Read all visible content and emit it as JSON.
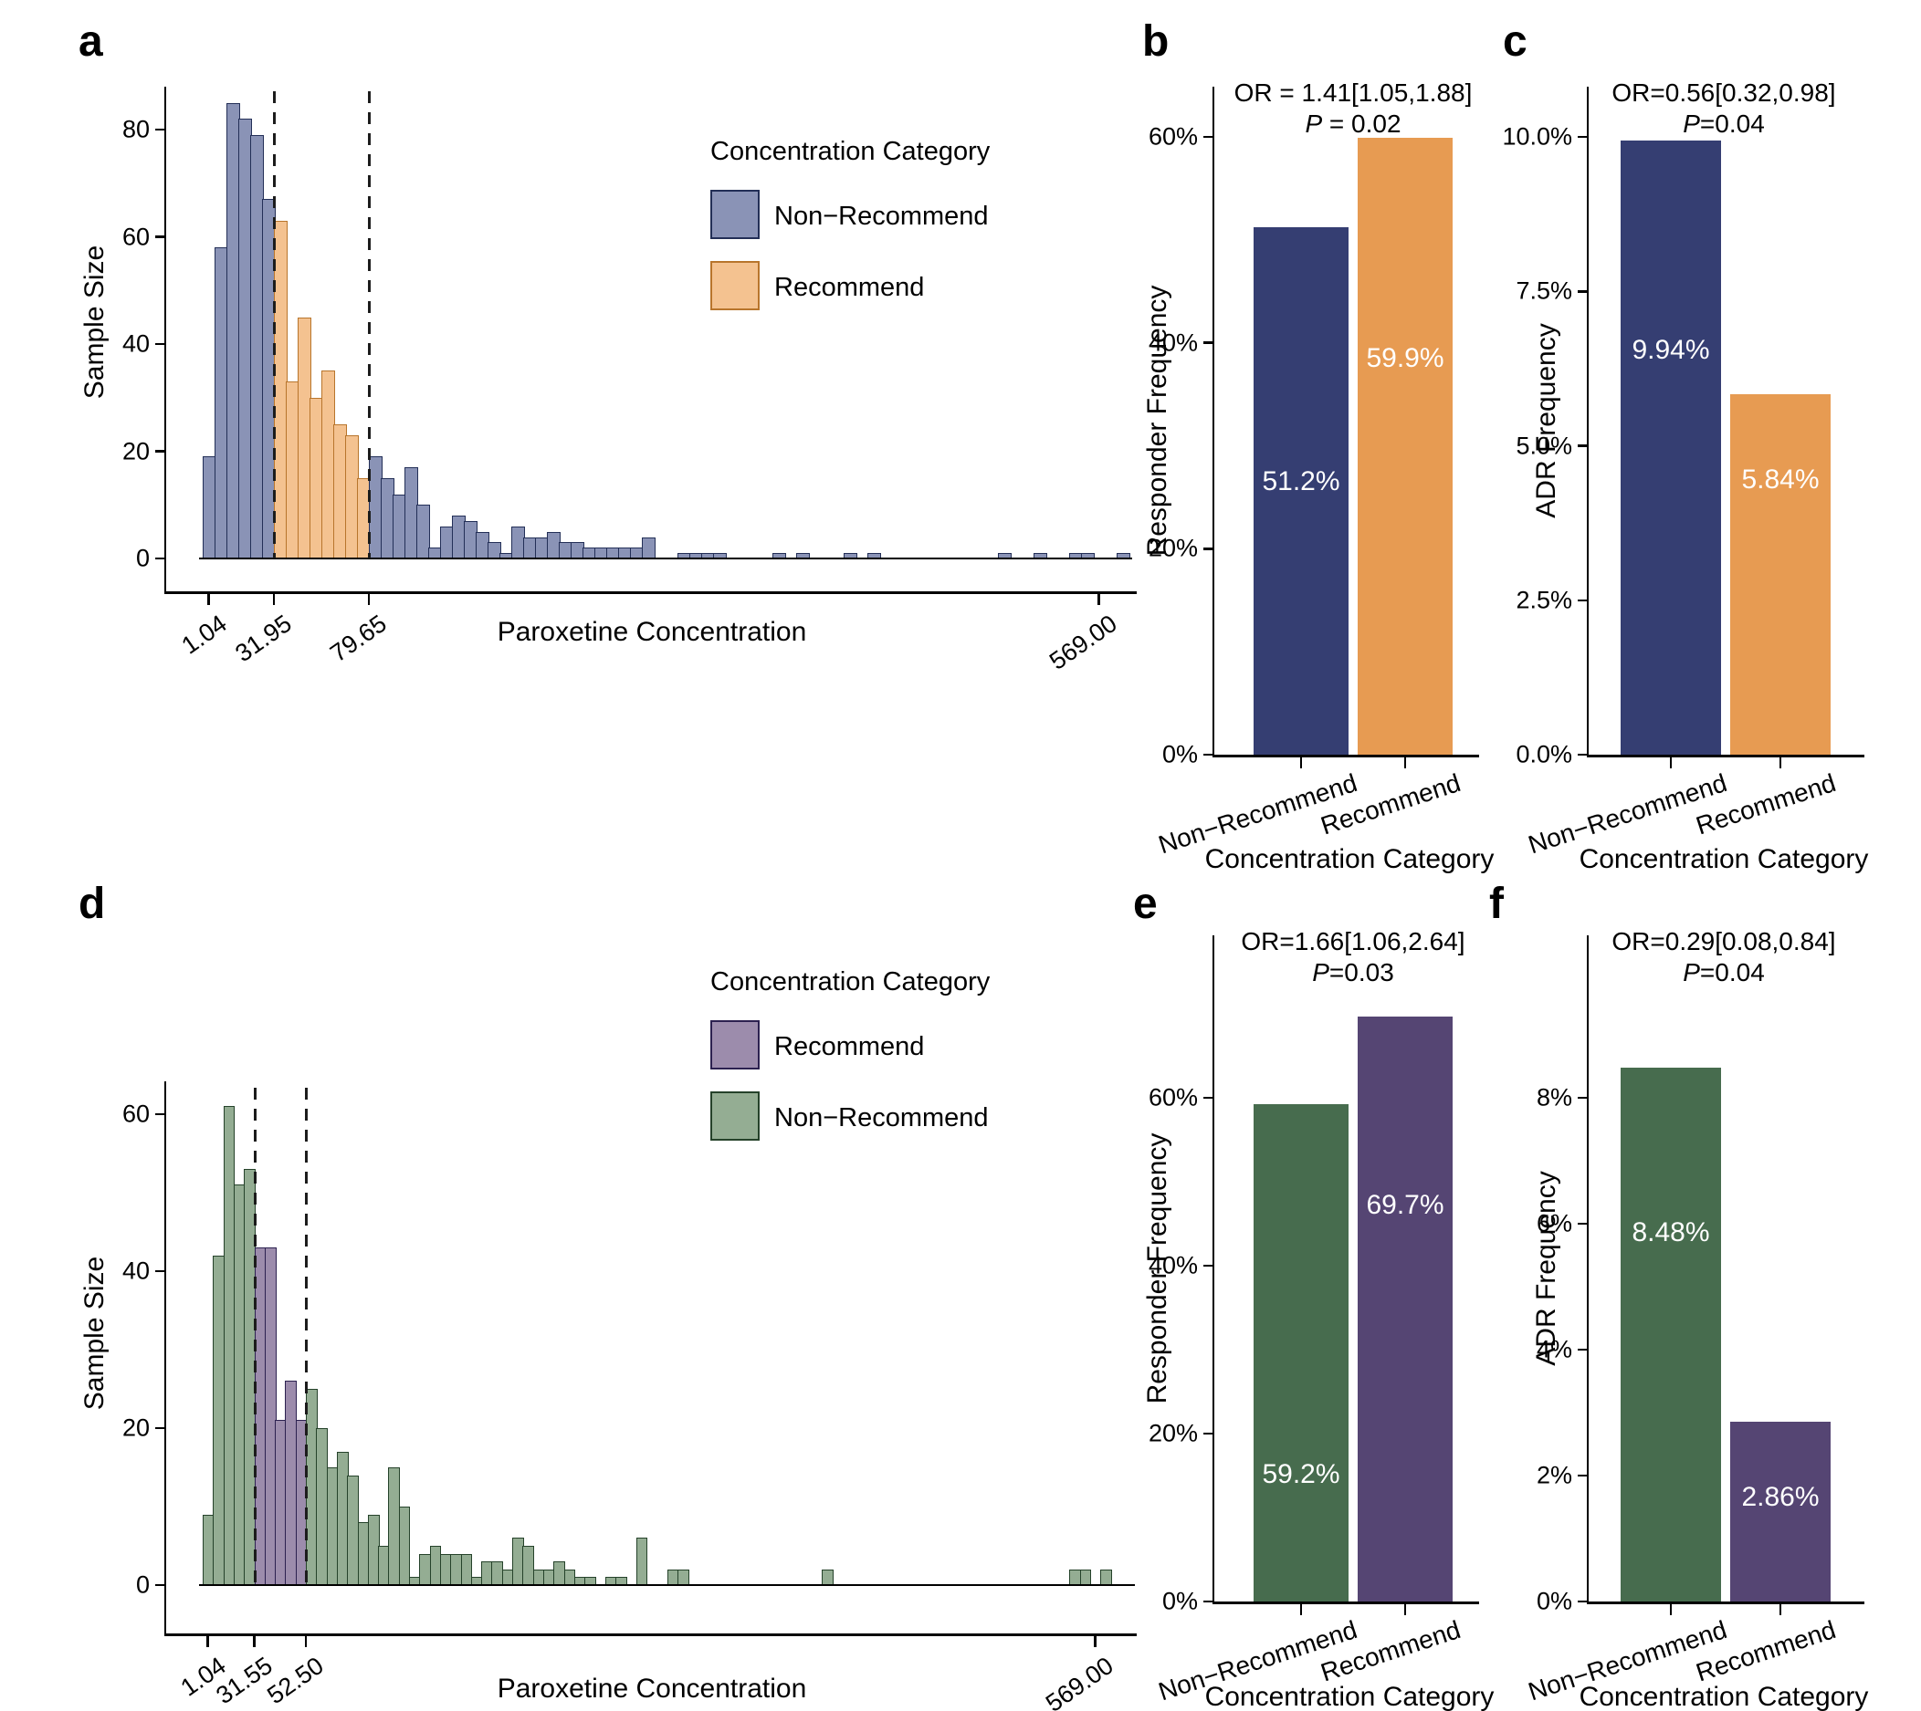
{
  "chart_data": [
    {
      "id": "a",
      "letter": "a",
      "type": "histogram",
      "ylabel": "Sample Size",
      "xlabel": "Paroxetine Concentration",
      "ytick_labels": [
        "0",
        "20",
        "40",
        "60",
        "80"
      ],
      "ytick_values": [
        0,
        20,
        40,
        60,
        80
      ],
      "ylim": [
        0,
        90
      ],
      "xticks": [
        {
          "label": "1.04",
          "bin": 0.5
        },
        {
          "label": "31.95",
          "bin": 6
        },
        {
          "label": "79.65",
          "bin": 14
        },
        {
          "label": "569.00",
          "bin": 75.5
        }
      ],
      "threshold_values": [
        "31.95",
        "79.65"
      ],
      "recommend_range": [
        6,
        14
      ],
      "values": [
        19,
        58,
        85,
        82,
        79,
        67,
        63,
        33,
        45,
        30,
        35,
        25,
        23,
        15,
        19,
        15,
        12,
        17,
        10,
        2,
        6,
        8,
        7,
        5,
        3,
        1,
        6,
        4,
        4,
        5,
        3,
        3,
        2,
        2,
        2,
        2,
        2,
        4,
        0,
        0,
        1,
        1,
        1,
        1,
        0,
        0,
        0,
        0,
        1,
        0,
        1,
        0,
        0,
        0,
        1,
        0,
        1,
        0,
        0,
        0,
        0,
        0,
        0,
        0,
        0,
        0,
        0,
        1,
        0,
        0,
        1,
        0,
        0,
        1,
        1,
        0,
        0,
        1
      ],
      "colors": {
        "non_recommend_fill": "#8a93b6",
        "non_recommend_stroke": "#232f57",
        "recommend_fill": "#f4c290",
        "recommend_stroke": "#b8752c"
      },
      "legend": {
        "title": "Concentration Category",
        "items": [
          {
            "label": "Non−Recommend",
            "fill": "#8a93b6",
            "stroke": "#232f57"
          },
          {
            "label": "Recommend",
            "fill": "#f4c290",
            "stroke": "#b8752c"
          }
        ]
      }
    },
    {
      "id": "b",
      "letter": "b",
      "type": "bar",
      "ylabel": "Responder Frequency",
      "xlabel": "Concentration Category",
      "categories": [
        "Non−Recommend",
        "Recommend"
      ],
      "values": [
        51.2,
        59.9
      ],
      "value_labels": [
        "51.2%",
        "59.9%"
      ],
      "label_y": [
        28,
        40
      ],
      "ytick_labels": [
        "0%",
        "20%",
        "40%",
        "60%"
      ],
      "ytick_values": [
        0,
        20,
        40,
        60
      ],
      "ylim": [
        0,
        72
      ],
      "or_text": "OR = 1.41[1.05,1.88]",
      "p_label": "P",
      "p_rest": " = 0.02",
      "colors": [
        "#353e72",
        "#e79b52"
      ]
    },
    {
      "id": "c",
      "letter": "c",
      "type": "bar",
      "ylabel": "ADR Frequency",
      "xlabel": "Concentration Category",
      "categories": [
        "Non−Recommend",
        "Recommend"
      ],
      "values": [
        9.94,
        5.84
      ],
      "value_labels": [
        "9.94%",
        "5.84%"
      ],
      "label_y": [
        6.8,
        4.7
      ],
      "ytick_labels": [
        "0.0%",
        "2.5%",
        "5.0%",
        "7.5%",
        "10.0%"
      ],
      "ytick_values": [
        0,
        2.5,
        5,
        7.5,
        10
      ],
      "ylim": [
        0,
        11.5
      ],
      "or_text": "OR=0.56[0.32,0.98]",
      "p_label": "P",
      "p_rest": "=0.04",
      "colors": [
        "#353e72",
        "#e79b52"
      ]
    },
    {
      "id": "d",
      "letter": "d",
      "type": "histogram",
      "ylabel": "Sample Size",
      "xlabel": "Paroxetine Concentration",
      "ytick_labels": [
        "0",
        "20",
        "40",
        "60"
      ],
      "ytick_values": [
        0,
        20,
        40,
        60
      ],
      "ylim": [
        0,
        66
      ],
      "xticks": [
        {
          "label": "1.04",
          "bin": 0.5
        },
        {
          "label": "31.55",
          "bin": 5
        },
        {
          "label": "52.50",
          "bin": 10
        },
        {
          "label": "569.00",
          "bin": 86.5
        }
      ],
      "threshold_values": [
        "31.55",
        "52.50"
      ],
      "recommend_range": [
        5,
        10
      ],
      "values": [
        9,
        42,
        61,
        51,
        53,
        43,
        43,
        21,
        26,
        21,
        25,
        20,
        15,
        17,
        14,
        8,
        9,
        5,
        15,
        10,
        1,
        4,
        5,
        4,
        4,
        4,
        1,
        3,
        3,
        2,
        6,
        5,
        2,
        2,
        3,
        2,
        1,
        1,
        0,
        1,
        1,
        0,
        6,
        0,
        0,
        2,
        2,
        0,
        0,
        0,
        0,
        0,
        0,
        0,
        0,
        0,
        0,
        0,
        0,
        0,
        2,
        0,
        0,
        0,
        0,
        0,
        0,
        0,
        0,
        0,
        0,
        0,
        0,
        0,
        0,
        0,
        0,
        0,
        0,
        0,
        0,
        0,
        0,
        0,
        2,
        2,
        0,
        2,
        0,
        0
      ],
      "colors": {
        "non_recommend_fill": "#94ad93",
        "non_recommend_stroke": "#25422a",
        "recommend_fill": "#9c8cac",
        "recommend_stroke": "#2c2150"
      },
      "legend": {
        "title": "Concentration Category",
        "items": [
          {
            "label": "Recommend",
            "fill": "#9c8cac",
            "stroke": "#2c2150"
          },
          {
            "label": "Non−Recommend",
            "fill": "#94ad93",
            "stroke": "#25422a"
          }
        ]
      }
    },
    {
      "id": "e",
      "letter": "e",
      "type": "bar",
      "ylabel": "Responder Frequency",
      "xlabel": "Concentration Category",
      "categories": [
        "Non−Recommend",
        "Recommend"
      ],
      "values": [
        59.2,
        69.7
      ],
      "value_labels": [
        "59.2%",
        "69.7%"
      ],
      "label_y": [
        17,
        49
      ],
      "ytick_labels": [
        "0%",
        "20%",
        "40%",
        "60%"
      ],
      "ytick_values": [
        0,
        20,
        40,
        60
      ],
      "ylim": [
        0,
        74
      ],
      "or_text": "OR=1.66[1.06,2.64]",
      "p_label": "P",
      "p_rest": "=0.03",
      "colors": [
        "#476c4e",
        "#554573"
      ]
    },
    {
      "id": "f",
      "letter": "f",
      "type": "bar",
      "ylabel": "ADR Frequency",
      "xlabel": "Concentration Category",
      "categories": [
        "Non−Recommend",
        "Recommend"
      ],
      "values": [
        8.48,
        2.86
      ],
      "value_labels": [
        "8.48%",
        "2.86%"
      ],
      "label_y": [
        6.1,
        1.9
      ],
      "ytick_labels": [
        "0%",
        "2%",
        "4%",
        "6%",
        "8%"
      ],
      "ytick_values": [
        0,
        2,
        4,
        6,
        8
      ],
      "ylim": [
        0,
        9.2
      ],
      "or_text": "OR=0.29[0.08,0.84]",
      "p_label": "P",
      "p_rest": "=0.04",
      "colors": [
        "#476c4e",
        "#554573"
      ]
    }
  ]
}
